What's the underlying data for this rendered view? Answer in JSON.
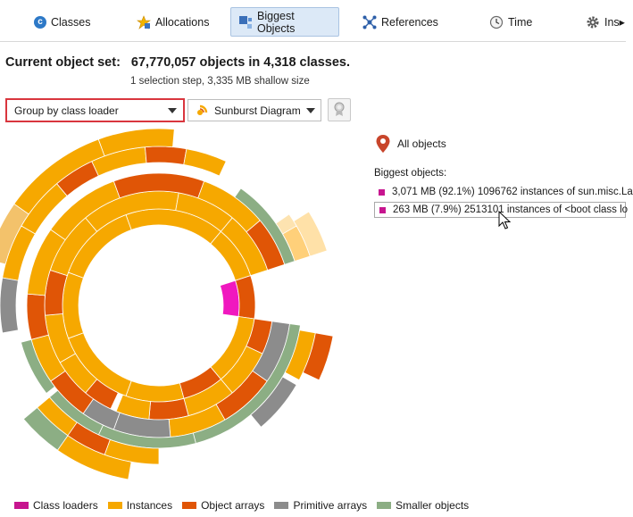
{
  "tabs": [
    {
      "id": "classes",
      "label": "Classes",
      "icon": "classes-icon"
    },
    {
      "id": "allocations",
      "label": "Allocations",
      "icon": "allocations-icon"
    },
    {
      "id": "biggest",
      "label": "Biggest Objects",
      "icon": "biggest-objects-icon",
      "active": true
    },
    {
      "id": "references",
      "label": "References",
      "icon": "references-icon"
    },
    {
      "id": "time",
      "label": "Time",
      "icon": "clock-icon"
    },
    {
      "id": "inspections",
      "label": "Ins▸",
      "icon": "gear-icon"
    }
  ],
  "summary": {
    "label": "Current object set:",
    "value": "67,770,057 objects in 4,318 classes.",
    "sub": "1 selection step, 3,335 MB shallow size"
  },
  "toolbar": {
    "group_by": "Group by class loader",
    "view": "Sunburst Diagram"
  },
  "sidebar": {
    "all_objects": "All objects",
    "heading": "Biggest objects:",
    "items": [
      {
        "text": "3,071 MB (92.1%) 1096762 instances of sun.misc.La"
      },
      {
        "text": "263 MB (7.9%) 2513101 instances of <boot class lo"
      }
    ]
  },
  "colors": {
    "class_loaders": "#c7158f",
    "instances": "#f6a800",
    "object_arrays": "#e05506",
    "primitive_arrays": "#8c8c8c",
    "smaller_objects": "#8cae84"
  },
  "legend": [
    {
      "label": "Class loaders",
      "key": "class_loaders"
    },
    {
      "label": "Instances",
      "key": "instances"
    },
    {
      "label": "Object arrays",
      "key": "object_arrays"
    },
    {
      "label": "Primitive arrays",
      "key": "primitive_arrays"
    },
    {
      "label": "Smaller objects",
      "key": "smaller_objects"
    }
  ]
}
